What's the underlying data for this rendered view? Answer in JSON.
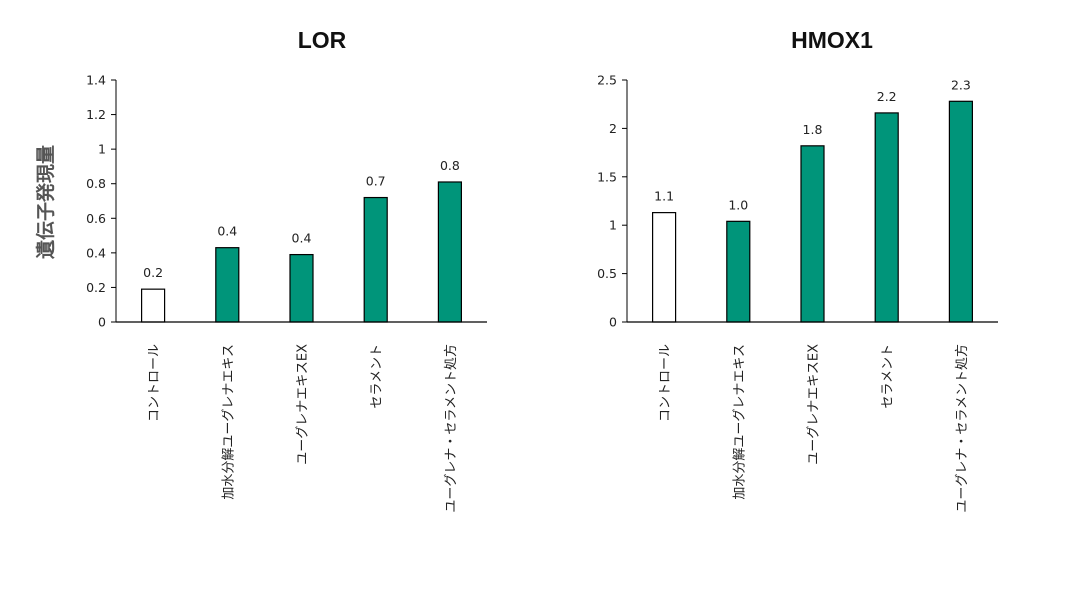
{
  "colors": {
    "filled_bar": "#00957a",
    "control_bar": "#ffffff",
    "bar_stroke": "#000000",
    "axis": "#000000"
  },
  "shared": {
    "ylabel": "遺伝子発現量"
  },
  "chart_data": [
    {
      "type": "bar",
      "title": "LOR",
      "ylabel": "遺伝子発現量",
      "xlabel": "",
      "categories": [
        "コントロール",
        "加水分解ユーグレナエキス",
        "ユーグレナエキスEX",
        "セラメント",
        "ユーグレナ・セラメント処方"
      ],
      "values": [
        0.19,
        0.43,
        0.39,
        0.72,
        0.81
      ],
      "data_labels": [
        "0.2",
        "0.4",
        "0.4",
        "0.7",
        "0.8"
      ],
      "bar_fill": [
        "control",
        "filled",
        "filled",
        "filled",
        "filled"
      ],
      "ylim": [
        0,
        1.4
      ],
      "yticks": [
        0,
        0.2,
        0.4,
        0.6,
        0.8,
        1,
        1.2,
        1.4
      ],
      "ytick_labels": [
        "0",
        "0.2",
        "0.4",
        "0.6",
        "0.8",
        "1",
        "1.2",
        "1.4"
      ],
      "grid": false,
      "legend": "none"
    },
    {
      "type": "bar",
      "title": "HMOX1",
      "xlabel": "",
      "categories": [
        "コントロール",
        "加水分解ユーグレナエキス",
        "ユーグレナエキスEX",
        "セラメント",
        "ユーグレナ・セラメント処方"
      ],
      "values": [
        1.13,
        1.04,
        1.82,
        2.16,
        2.28
      ],
      "data_labels": [
        "1.1",
        "1.0",
        "1.8",
        "2.2",
        "2.3"
      ],
      "bar_fill": [
        "control",
        "filled",
        "filled",
        "filled",
        "filled"
      ],
      "ylim": [
        0,
        2.5
      ],
      "yticks": [
        0,
        0.5,
        1,
        1.5,
        2,
        2.5
      ],
      "ytick_labels": [
        "0",
        "0.5",
        "1",
        "1.5",
        "2",
        "2.5"
      ],
      "grid": false,
      "legend": "none"
    }
  ]
}
